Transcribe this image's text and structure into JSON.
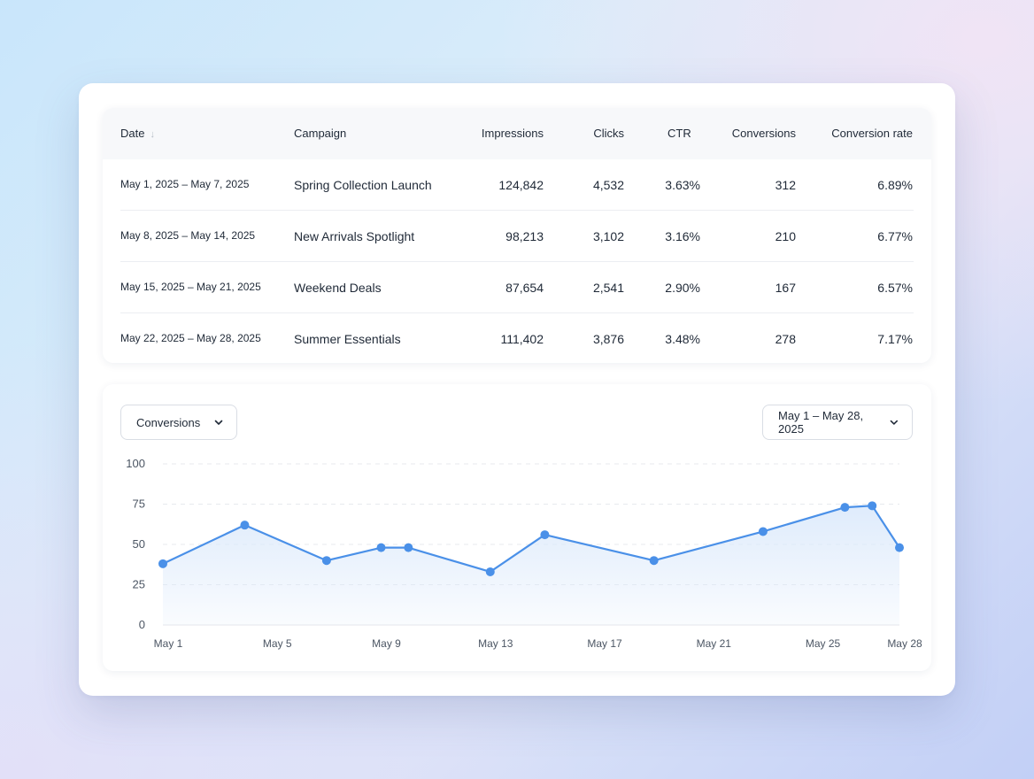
{
  "table": {
    "columns": [
      "Date",
      "Campaign",
      "Impressions",
      "Clicks",
      "CTR",
      "Conversions",
      "Conversion rate"
    ],
    "sort_icon": "arrow-down-icon",
    "rows": [
      {
        "date": "May 1, 2025 – May 7, 2025",
        "campaign": "Spring Collection Launch",
        "impressions": "124,842",
        "clicks": "4,532",
        "ctr": "3.63%",
        "conversions": "312",
        "rate": "6.89%"
      },
      {
        "date": "May 8, 2025 – May 14, 2025",
        "campaign": "New Arrivals Spotlight",
        "impressions": "98,213",
        "clicks": "3,102",
        "ctr": "3.16%",
        "conversions": "210",
        "rate": "6.77%"
      },
      {
        "date": "May 15, 2025 – May 21, 2025",
        "campaign": "Weekend Deals",
        "impressions": "87,654",
        "clicks": "2,541",
        "ctr": "2.90%",
        "conversions": "167",
        "rate": "6.57%"
      },
      {
        "date": "May 22, 2025 – May 28, 2025",
        "campaign": "Summer Essentials",
        "impressions": "111,402",
        "clicks": "3,876",
        "ctr": "3.48%",
        "conversions": "278",
        "rate": "7.17%"
      }
    ]
  },
  "controls": {
    "metric_select": "Conversions",
    "range_select": "May 1 – May 28, 2025"
  },
  "colors": {
    "line": "#4a90e8",
    "area": "#dbe9fb"
  },
  "chart_data": {
    "type": "area",
    "x": [
      1,
      4,
      7,
      9,
      10,
      13,
      15,
      19,
      23,
      26,
      27,
      28
    ],
    "x_unit": "day of May 2025",
    "values": [
      38,
      62,
      40,
      48,
      48,
      33,
      56,
      40,
      58,
      73,
      74,
      48
    ],
    "xticks": [
      "May 1",
      "May 5",
      "May 9",
      "May 13",
      "May 17",
      "May 21",
      "May 25",
      "May 28"
    ],
    "xtick_days": [
      1,
      5,
      9,
      13,
      17,
      21,
      25,
      28
    ],
    "yticks": [
      "0",
      "25",
      "50",
      "75",
      "100"
    ],
    "ylim": [
      0,
      100
    ],
    "xlim": [
      1,
      28
    ],
    "grid": true,
    "legend": false
  }
}
